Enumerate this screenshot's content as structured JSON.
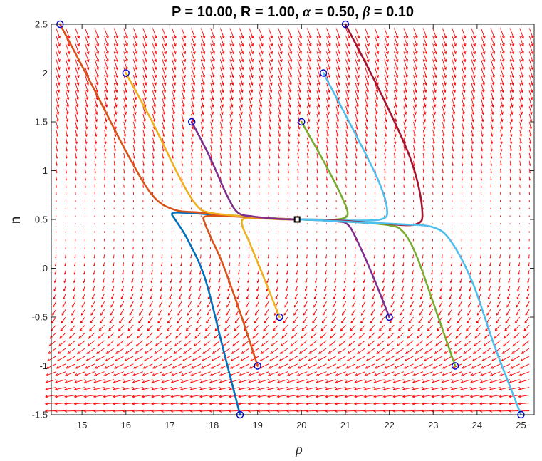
{
  "chart_data": {
    "type": "line",
    "title": "P = 10.00, R = 1.00, α = 0.50, β = 0.10",
    "title_parts": [
      {
        "text": "P = 10.00, R = 1.00, ",
        "greek": false
      },
      {
        "text": "α",
        "greek": true
      },
      {
        "text": " = 0.50, ",
        "greek": false
      },
      {
        "text": "β",
        "greek": true
      },
      {
        "text": " = 0.10",
        "greek": false
      }
    ],
    "xlabel": "ρ",
    "ylabel": "n",
    "xlim": [
      14.3,
      25.3
    ],
    "ylim": [
      -1.5,
      2.5
    ],
    "xticks": [
      15,
      16,
      17,
      18,
      19,
      20,
      21,
      22,
      23,
      24,
      25
    ],
    "yticks": [
      2.5,
      2,
      1.5,
      1,
      0.5,
      0,
      -0.5,
      -1,
      -1.5
    ],
    "grid": false,
    "legend": "none",
    "quiver_color": "#ff0000",
    "marker_color": "#0000cc",
    "fixed_point": {
      "x": 19.9,
      "y": 0.5
    },
    "series": [
      {
        "color": "#0072bd",
        "start": [
          18.6,
          -1.5
        ],
        "points": [
          [
            18.6,
            -1.5
          ],
          [
            18.2,
            -0.8
          ],
          [
            17.8,
            -0.1
          ],
          [
            17.4,
            0.3
          ],
          [
            17.15,
            0.48
          ],
          [
            17.05,
            0.56
          ],
          [
            17.25,
            0.57
          ],
          [
            17.8,
            0.555
          ],
          [
            18.6,
            0.53
          ],
          [
            19.4,
            0.51
          ],
          [
            19.9,
            0.5
          ]
        ]
      },
      {
        "color": "#d95319",
        "start": [
          19.0,
          -1.0
        ],
        "points": [
          [
            19.0,
            -1.0
          ],
          [
            18.6,
            -0.45
          ],
          [
            18.2,
            0.05
          ],
          [
            17.95,
            0.3
          ],
          [
            17.8,
            0.46
          ],
          [
            17.8,
            0.53
          ],
          [
            18.2,
            0.535
          ],
          [
            18.9,
            0.52
          ],
          [
            19.5,
            0.505
          ],
          [
            19.9,
            0.5
          ]
        ]
      },
      {
        "color": "#edb120",
        "start": [
          19.5,
          -0.5
        ],
        "points": [
          [
            19.5,
            -0.5
          ],
          [
            19.1,
            -0.05
          ],
          [
            18.8,
            0.28
          ],
          [
            18.65,
            0.44
          ],
          [
            18.7,
            0.51
          ],
          [
            19.1,
            0.51
          ],
          [
            19.6,
            0.5
          ],
          [
            19.9,
            0.5
          ]
        ]
      },
      {
        "color": "#d95319",
        "start": [
          14.5,
          2.5
        ],
        "points": [
          [
            14.5,
            2.5
          ],
          [
            15.2,
            1.9
          ],
          [
            16.0,
            1.2
          ],
          [
            16.6,
            0.75
          ],
          [
            17.1,
            0.6
          ],
          [
            17.7,
            0.57
          ],
          [
            18.5,
            0.535
          ],
          [
            19.3,
            0.51
          ],
          [
            19.9,
            0.5
          ]
        ]
      },
      {
        "color": "#edb120",
        "start": [
          16.0,
          2.0
        ],
        "points": [
          [
            16.0,
            2.0
          ],
          [
            16.6,
            1.5
          ],
          [
            17.2,
            0.95
          ],
          [
            17.6,
            0.65
          ],
          [
            17.9,
            0.57
          ],
          [
            18.6,
            0.535
          ],
          [
            19.4,
            0.51
          ],
          [
            19.9,
            0.5
          ]
        ]
      },
      {
        "color": "#7e2f8e",
        "start": [
          17.5,
          1.5
        ],
        "points": [
          [
            17.5,
            1.5
          ],
          [
            17.9,
            1.15
          ],
          [
            18.3,
            0.75
          ],
          [
            18.55,
            0.57
          ],
          [
            18.9,
            0.53
          ],
          [
            19.5,
            0.505
          ],
          [
            19.9,
            0.5
          ]
        ]
      },
      {
        "color": "#7e2f8e",
        "start": [
          22.0,
          -0.5
        ],
        "points": [
          [
            22.0,
            -0.5
          ],
          [
            21.6,
            -0.05
          ],
          [
            21.25,
            0.3
          ],
          [
            21.05,
            0.45
          ],
          [
            20.8,
            0.48
          ],
          [
            20.3,
            0.495
          ],
          [
            19.9,
            0.5
          ]
        ]
      },
      {
        "color": "#77ac30",
        "start": [
          20.0,
          1.5
        ],
        "points": [
          [
            20.0,
            1.5
          ],
          [
            20.5,
            1.1
          ],
          [
            20.9,
            0.75
          ],
          [
            21.05,
            0.55
          ],
          [
            20.8,
            0.5
          ],
          [
            20.3,
            0.5
          ],
          [
            19.9,
            0.5
          ]
        ]
      },
      {
        "color": "#77ac30",
        "start": [
          23.5,
          -1.0
        ],
        "points": [
          [
            23.5,
            -1.0
          ],
          [
            23.0,
            -0.35
          ],
          [
            22.6,
            0.15
          ],
          [
            22.3,
            0.38
          ],
          [
            22.0,
            0.44
          ],
          [
            21.3,
            0.47
          ],
          [
            20.5,
            0.49
          ],
          [
            19.9,
            0.5
          ]
        ]
      },
      {
        "color": "#4dbeee",
        "start": [
          20.5,
          2.0
        ],
        "points": [
          [
            20.5,
            2.0
          ],
          [
            21.2,
            1.4
          ],
          [
            21.75,
            0.9
          ],
          [
            21.95,
            0.6
          ],
          [
            21.8,
            0.5
          ],
          [
            21.0,
            0.49
          ],
          [
            20.3,
            0.5
          ],
          [
            19.9,
            0.5
          ]
        ]
      },
      {
        "color": "#a2142f",
        "start": [
          21.0,
          2.5
        ],
        "points": [
          [
            21.0,
            2.5
          ],
          [
            21.8,
            1.8
          ],
          [
            22.5,
            1.1
          ],
          [
            22.75,
            0.6
          ],
          [
            22.6,
            0.45
          ],
          [
            21.8,
            0.46
          ],
          [
            20.8,
            0.49
          ],
          [
            19.9,
            0.5
          ]
        ]
      },
      {
        "color": "#4dbeee",
        "start": [
          25.0,
          -1.5
        ],
        "points": [
          [
            25.0,
            -1.5
          ],
          [
            24.4,
            -0.8
          ],
          [
            23.9,
            -0.15
          ],
          [
            23.4,
            0.28
          ],
          [
            23.0,
            0.42
          ],
          [
            22.3,
            0.45
          ],
          [
            21.3,
            0.47
          ],
          [
            20.5,
            0.49
          ],
          [
            19.9,
            0.5
          ]
        ]
      }
    ]
  }
}
